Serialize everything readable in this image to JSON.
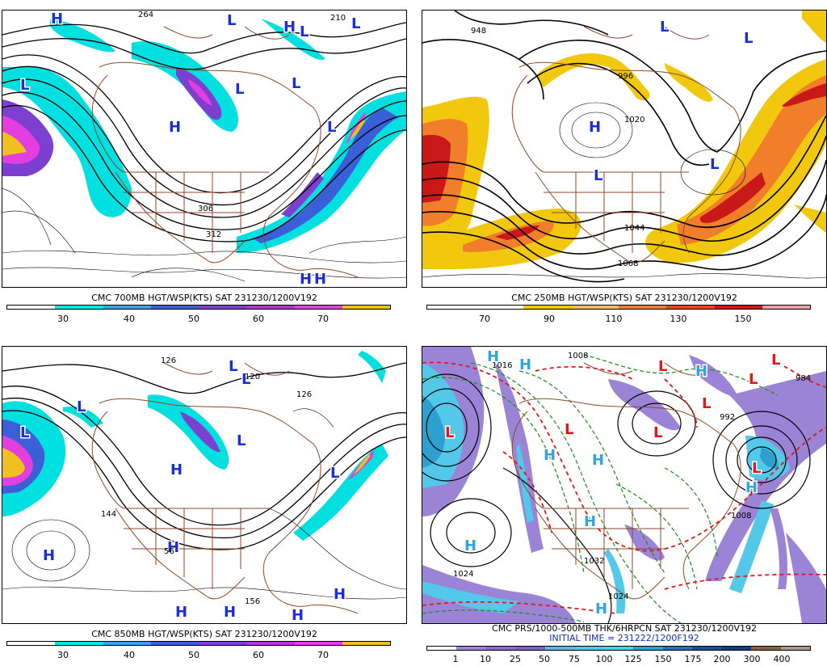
{
  "panels": [
    {
      "caption": "CMC 700MB HGT/WSP(KTS) SAT 231230/1200V192",
      "legend": {
        "colors": [
          "#ffffff",
          "#00e5e5",
          "#3fa0e6",
          "#3a5fd6",
          "#7d3fcf",
          "#b236d2",
          "#e33ee0",
          "#f0c020"
        ],
        "ticks": [
          "30",
          "40",
          "50",
          "60",
          "70"
        ]
      },
      "highs": [
        "H",
        "H",
        "H",
        "H",
        "H"
      ],
      "lows": [
        "L",
        "L",
        "L",
        "L",
        "L",
        "L",
        "L"
      ],
      "contour_labels": [
        "264",
        "210",
        "306",
        "312"
      ]
    },
    {
      "caption": "CMC 250MB HGT/WSP(KTS) SAT 231230/1200V192",
      "legend": {
        "colors": [
          "#ffffff",
          "#ffffff",
          "#f2c80f",
          "#f0c060",
          "#f07e2a",
          "#e24a1c",
          "#c91818",
          "#f2a0a8"
        ],
        "ticks": [
          "70",
          "90",
          "110",
          "130",
          "150"
        ]
      },
      "highs": [
        "H"
      ],
      "lows": [
        "L",
        "L",
        "L",
        "L"
      ],
      "contour_labels": [
        "948",
        "996",
        "1020",
        "1044",
        "1068"
      ]
    },
    {
      "caption": "CMC 850MB HGT/WSP(KTS) SAT 231230/1200V192",
      "legend": {
        "colors": [
          "#ffffff",
          "#00e5e5",
          "#3fa0e6",
          "#3a5fd6",
          "#7d3fcf",
          "#b236d2",
          "#e33ee0",
          "#f0c020"
        ],
        "ticks": [
          "30",
          "40",
          "50",
          "60",
          "70"
        ]
      },
      "highs": [
        "H",
        "H",
        "H",
        "H",
        "H",
        "H",
        "H"
      ],
      "lows": [
        "L",
        "L",
        "L",
        "L",
        "L",
        "L"
      ],
      "contour_labels": [
        "126",
        "120",
        "126",
        "144",
        "156",
        "56"
      ]
    },
    {
      "caption": "CMC PRS/1000-500MB THK/6HRPCN SAT 231230/1200V192",
      "caption2": "INITIAL TIME = 231222/1200F192",
      "legend": {
        "colors": [
          "#ffffff",
          "#9b84d6",
          "#8a6cd0",
          "#7c63c8",
          "#6ab4e0",
          "#53c8e8",
          "#40d8dc",
          "#2ea0d0",
          "#2b6fb8",
          "#1b4e96",
          "#123f7a",
          "#8b6040",
          "#a89890"
        ],
        "ticks": [
          "1",
          "10",
          "25",
          "50",
          "75",
          "100",
          "125",
          "150",
          "175",
          "200",
          "300",
          "400"
        ]
      },
      "highs": [
        "H",
        "H",
        "H",
        "H",
        "H",
        "H",
        "H",
        "H",
        "H"
      ],
      "lows": [
        "L",
        "L",
        "L",
        "L",
        "L",
        "L",
        "L",
        "L"
      ],
      "contour_labels": [
        "1016",
        "1008",
        "1024",
        "1024",
        "1032",
        "1008",
        "992",
        "984"
      ]
    }
  ]
}
